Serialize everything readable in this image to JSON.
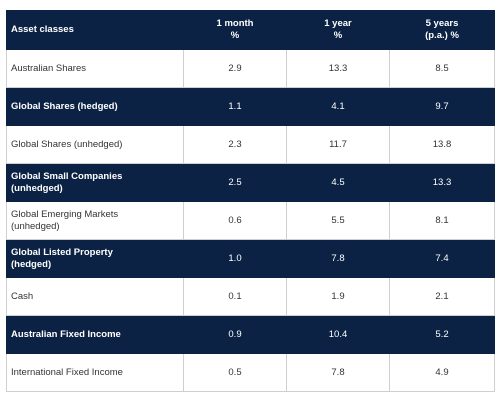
{
  "table": {
    "headers": {
      "asset_classes": "Asset classes",
      "one_month": [
        "1 month",
        "%"
      ],
      "one_year": [
        "1 year",
        "%"
      ],
      "five_years": [
        "5 years",
        "(p.a.) %"
      ]
    },
    "rows": [
      {
        "label": "Australian Shares",
        "m1": "2.9",
        "y1": "13.3",
        "y5": "8.5",
        "highlight": false
      },
      {
        "label": "Global Shares (hedged)",
        "m1": "1.1",
        "y1": "4.1",
        "y5": "9.7",
        "highlight": true
      },
      {
        "label": "Global Shares (unhedged)",
        "m1": "2.3",
        "y1": "11.7",
        "y5": "13.8",
        "highlight": false
      },
      {
        "label": [
          "Global Small Companies",
          "(unhedged)"
        ],
        "m1": "2.5",
        "y1": "4.5",
        "y5": "13.3",
        "highlight": true
      },
      {
        "label": [
          "Global Emerging Markets",
          "(unhedged)"
        ],
        "m1": "0.6",
        "y1": "5.5",
        "y5": "8.1",
        "highlight": false
      },
      {
        "label": [
          "Global Listed Property",
          "(hedged)"
        ],
        "m1": "1.0",
        "y1": "7.8",
        "y5": "7.4",
        "highlight": true
      },
      {
        "label": "Cash",
        "m1": "0.1",
        "y1": "1.9",
        "y5": "2.1",
        "highlight": false
      },
      {
        "label": "Australian Fixed Income",
        "m1": "0.9",
        "y1": "10.4",
        "y5": "5.2",
        "highlight": true
      },
      {
        "label": "International Fixed Income",
        "m1": "0.5",
        "y1": "7.8",
        "y5": "4.9",
        "highlight": false
      }
    ],
    "colors": {
      "header_bg": "#0b2244",
      "highlight_row_bg": "#0b2244",
      "plain_row_bg": "#ffffff",
      "border": "#cfcfcf"
    }
  }
}
